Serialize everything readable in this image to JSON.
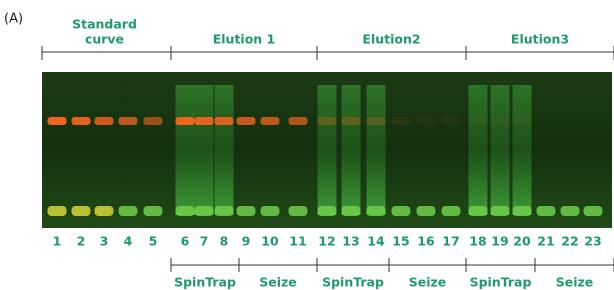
{
  "panel_label": "(A)",
  "groups": [
    {
      "lines": [
        "Standard",
        "curve"
      ]
    },
    {
      "lines": [
        "Elution 1"
      ]
    },
    {
      "lines": [
        "Elution2"
      ]
    },
    {
      "lines": [
        "Elution3"
      ]
    }
  ],
  "lanes": [
    1,
    2,
    3,
    4,
    5,
    6,
    7,
    8,
    9,
    10,
    11,
    12,
    13,
    14,
    15,
    16,
    17,
    18,
    19,
    20,
    21,
    22,
    23
  ],
  "subgroups": [
    "SpinTrap",
    "Seize",
    "SpinTrap",
    "Seize",
    "SpinTrap",
    "Seize"
  ]
}
